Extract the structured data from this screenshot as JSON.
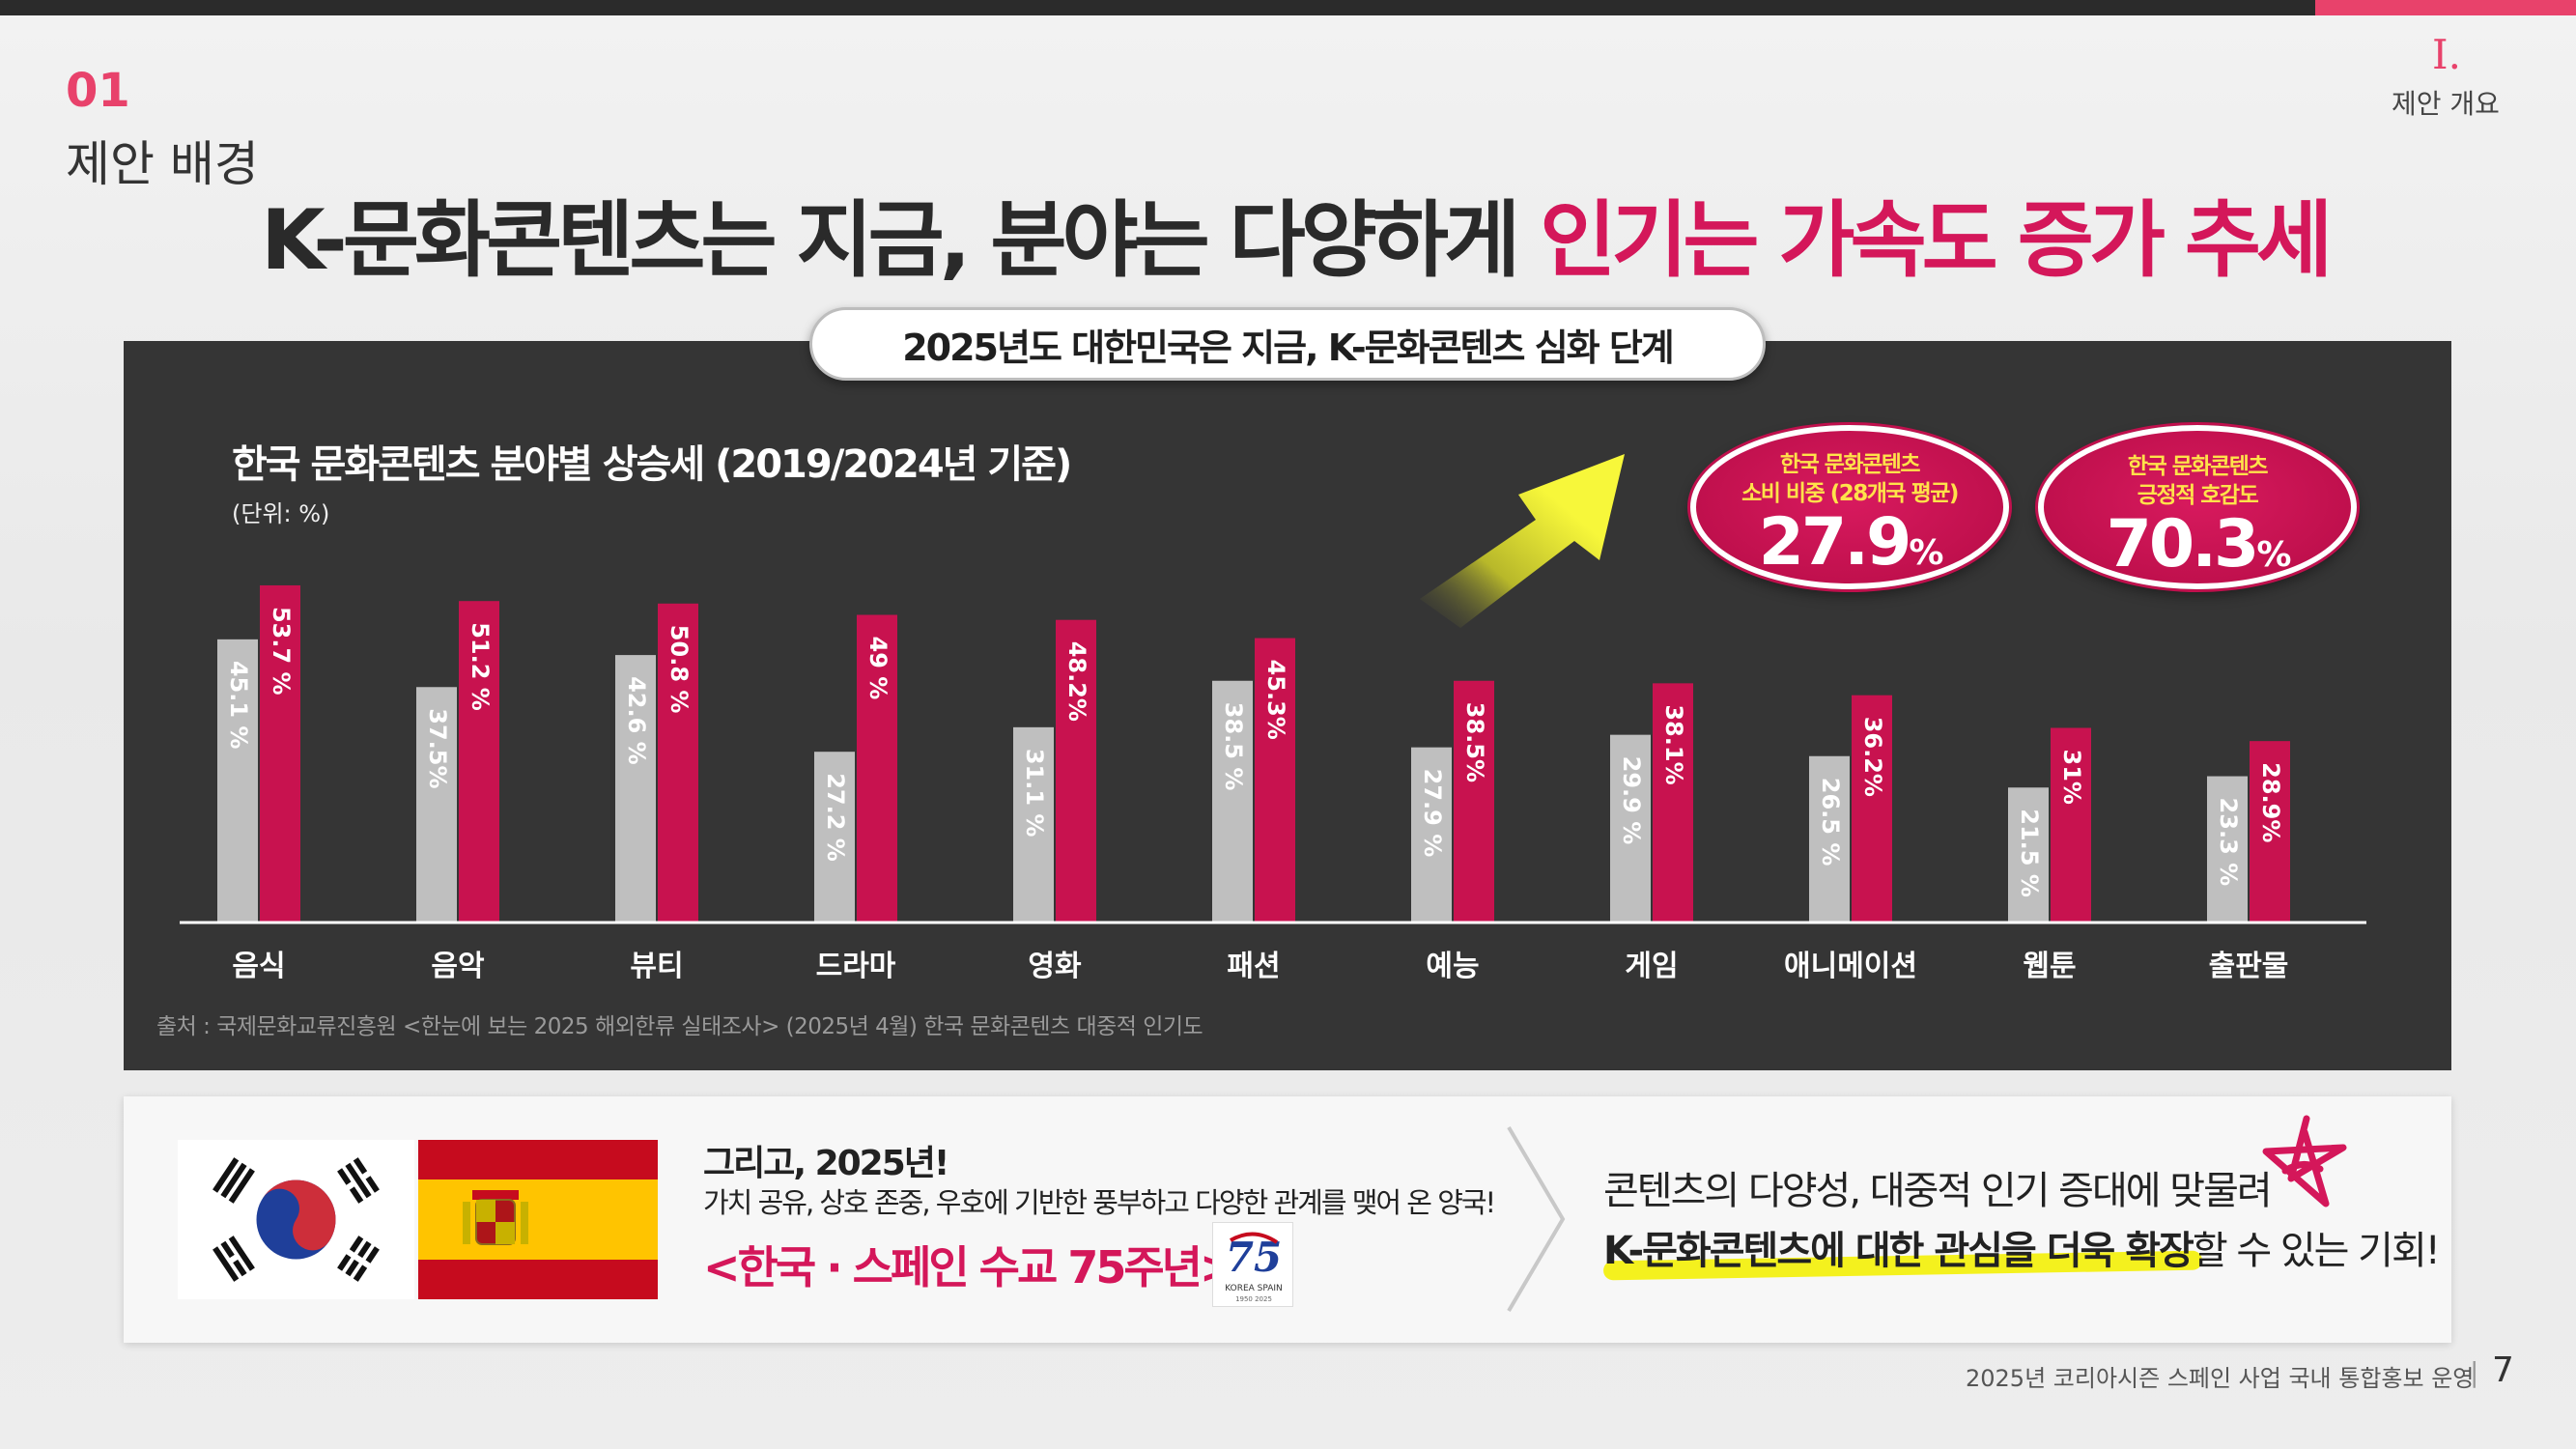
{
  "header": {
    "section_number": "01",
    "section_name": "제안 배경",
    "chapter_number": "Ⅰ.",
    "chapter_name": "제안 개요",
    "headline_main": "K-문화콘텐츠는 지금, 분야는 다양하게 ",
    "headline_highlight": "인기는 가속도 증가 추세"
  },
  "panel": {
    "pill_label": "2025년도 대한민국은 지금, K-문화콘텐츠 심화 단계",
    "source": "출처 : 국제문화교류진흥원 <한눈에 보는 2025 해외한류 실태조사> (2025년 4월) 한국 문화콘텐츠 대중적 인기도"
  },
  "badges": [
    {
      "line1": "한국 문화콘텐츠",
      "line2": "소비 비중 (28개국 평균)",
      "value": "27.9",
      "unit": "%"
    },
    {
      "line1": "한국 문화콘텐츠",
      "line2": "긍정적 호감도",
      "value": "70.3",
      "unit": "%"
    }
  ],
  "chart_data": {
    "type": "bar",
    "title": "한국 문화콘텐츠 분야별 상승세 (2019/2024년 기준)",
    "unit_label": "(단위: %)",
    "categories": [
      "음식",
      "음악",
      "뷰티",
      "드라마",
      "영화",
      "패션",
      "예능",
      "게임",
      "애니메이션",
      "웹툰",
      "출판물"
    ],
    "series": [
      {
        "color": "#bfbfbf",
        "values": [
          45.1,
          37.5,
          42.6,
          27.2,
          31.1,
          38.5,
          27.9,
          29.9,
          26.5,
          21.5,
          23.3
        ],
        "labels": [
          "45.1 %",
          "37.5%",
          "42.6 %",
          "27.2 %",
          "31.1 %",
          "38.5 %",
          "27.9 %",
          "29.9 %",
          "26.5 %",
          "21.5 %",
          "23.3 %"
        ]
      },
      {
        "color": "#c8124f",
        "values": [
          53.7,
          51.2,
          50.8,
          49,
          48.2,
          45.3,
          38.5,
          38.1,
          36.2,
          31,
          28.9
        ],
        "labels": [
          "53.7 %",
          "51.2 %",
          "50.8 %",
          "49 %",
          "48.2%",
          "45.3%",
          "38.5%",
          "38.1%",
          "36.2%",
          "31%",
          "28.9%"
        ]
      }
    ],
    "ylim": [
      0,
      60
    ],
    "grid": false,
    "legend": "none"
  },
  "bottom": {
    "line1": "그리고, 2025년!",
    "line2": "가치 공유, 상호 존중, 우호에 기반한 풍부하고 다양한 관계를 맺어 온 양국!",
    "line3": "<한국 · 스페인 수교 75주년>",
    "logo_number": "75",
    "logo_text": "KOREA SPAIN",
    "logo_years": "1950  2025",
    "right_line1": "콘텐츠의 다양성, 대중적 인기 증대에 맞물려",
    "right_line2_strong": "K-문화콘텐츠에 대한 관심을 더욱 확장",
    "right_line2_rest": "할 수 있는 기회!"
  },
  "footer": {
    "text": "2025년 코리아시즌 스페인 사업 국내 통합홍보 운영",
    "separator": "|",
    "page": "7"
  }
}
